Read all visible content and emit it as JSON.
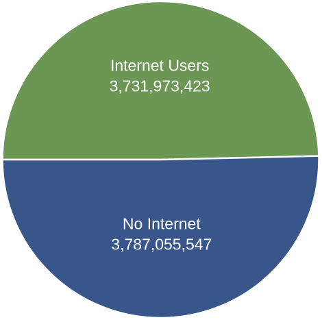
{
  "chart_data": {
    "type": "pie",
    "title": "",
    "slices": [
      {
        "label": "Internet Users",
        "value": 3731973423,
        "display_value": "3,731,973,423",
        "color": "#6b9653"
      },
      {
        "label": "No Internet",
        "value": 3787055547,
        "display_value": "3,787,055,547",
        "color": "#385689"
      }
    ],
    "start_position": "left",
    "direction": "clockwise",
    "legend": "none",
    "labels_inside": true
  }
}
